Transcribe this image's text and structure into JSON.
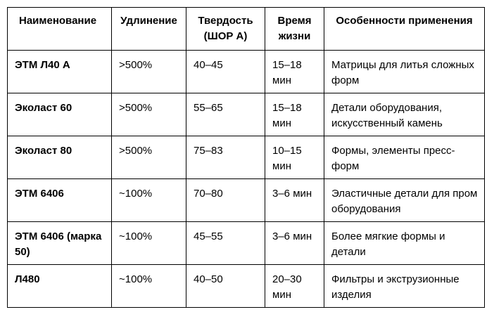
{
  "table": {
    "headers": [
      "Наименование",
      "Удлинение",
      "Твердость (ШОР А)",
      "Время жизни",
      "Особенности применения"
    ],
    "rows": [
      {
        "name": "ЭТМ Л40 А",
        "elongation": ">500%",
        "hardness": "40–45",
        "pot_life": "15–18 мин",
        "usage": "Матрицы для литья сложных форм"
      },
      {
        "name": "Эколаст 60",
        "elongation": ">500%",
        "hardness": "55–65",
        "pot_life": "15–18 мин",
        "usage": "Детали оборудования, искусственный камень"
      },
      {
        "name": "Эколаст 80",
        "elongation": ">500%",
        "hardness": "75–83",
        "pot_life": "10–15 мин",
        "usage": "Формы, элементы пресс-форм"
      },
      {
        "name": "ЭТМ 6406",
        "elongation": "~100%",
        "hardness": "70–80",
        "pot_life": "3–6 мин",
        "usage": "Эластичные детали для пром оборудования"
      },
      {
        "name": "ЭТМ 6406 (марка 50)",
        "elongation": "~100%",
        "hardness": "45–55",
        "pot_life": "3–6 мин",
        "usage": "Более мягкие формы и детали"
      },
      {
        "name": "Л480",
        "elongation": "~100%",
        "hardness": "40–50",
        "pot_life": "20–30 мин",
        "usage": "Фильтры и экструзионные изделия"
      }
    ]
  }
}
